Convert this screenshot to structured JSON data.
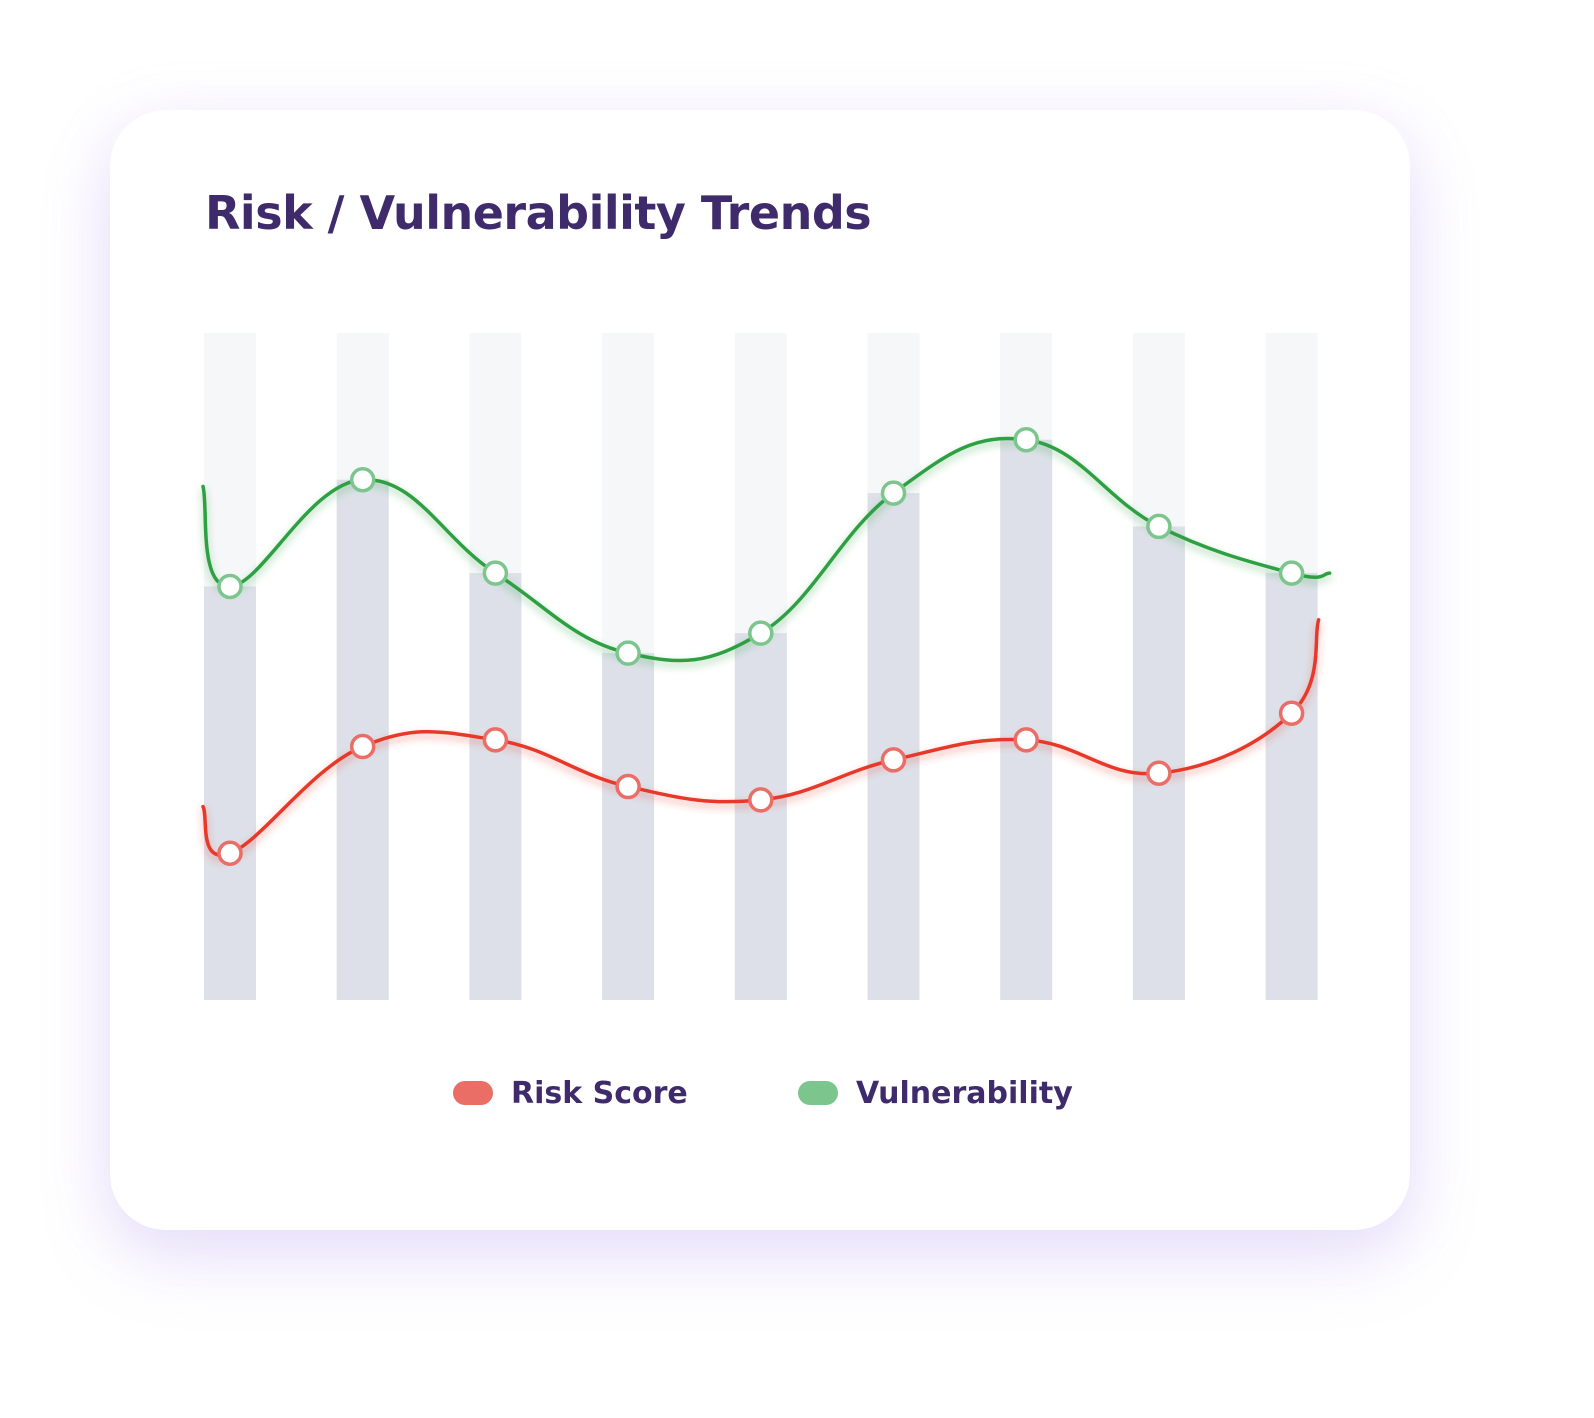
{
  "chart_data": {
    "type": "line",
    "title": "Risk / Vulnerability Trends",
    "xlabel": "",
    "ylabel": "",
    "categories": [
      "",
      "",
      "",
      "",
      "",
      "",
      "",
      "",
      ""
    ],
    "ylim": [
      0,
      100
    ],
    "grid": false,
    "legend_position": "bottom-center",
    "bars": {
      "values": [
        62,
        78,
        64,
        52,
        55,
        76,
        84,
        71,
        64
      ]
    },
    "series": [
      {
        "name": "Risk Score",
        "color": "#e8382b",
        "legend_color": "#ea6d66",
        "values": [
          22,
          38,
          39,
          32,
          30,
          36,
          39,
          34,
          43
        ]
      },
      {
        "name": "Vulnerability",
        "color": "#2ea043",
        "legend_color": "#7cc68e",
        "values": [
          62,
          78,
          64,
          52,
          55,
          76,
          84,
          71,
          64
        ]
      }
    ]
  }
}
